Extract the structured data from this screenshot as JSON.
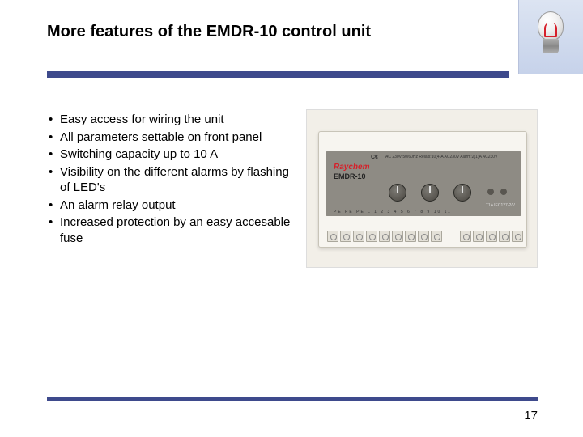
{
  "title": "More features of the EMDR-10 control unit",
  "bullets": [
    "Easy access for wiring the unit",
    "All parameters settable on front panel",
    "Switching capacity up to 10 A",
    "Visibility on the different alarms by flashing of LED's",
    "An alarm relay output",
    "Increased protection by an easy accesable fuse"
  ],
  "device": {
    "brand": "Raychem",
    "model": "EMDR-10",
    "ce": "C€",
    "spec": "AC 230V 50/60Hz  Relais:10(4)A AC230V   Alarm:2(1)A AC230V",
    "fuse": "T1A IEC127-2/V",
    "terminal_labels": "PE PE PE L  1  2  3  4  5  6          7   8   9  10 11"
  },
  "page_number": "17",
  "colors": {
    "accent_bar": "#3e4a8c",
    "brand_red": "#d61f2a",
    "panel_grey": "#8e8b84",
    "device_body": "#f7f5f0",
    "background_photo": "#f2efe8"
  }
}
